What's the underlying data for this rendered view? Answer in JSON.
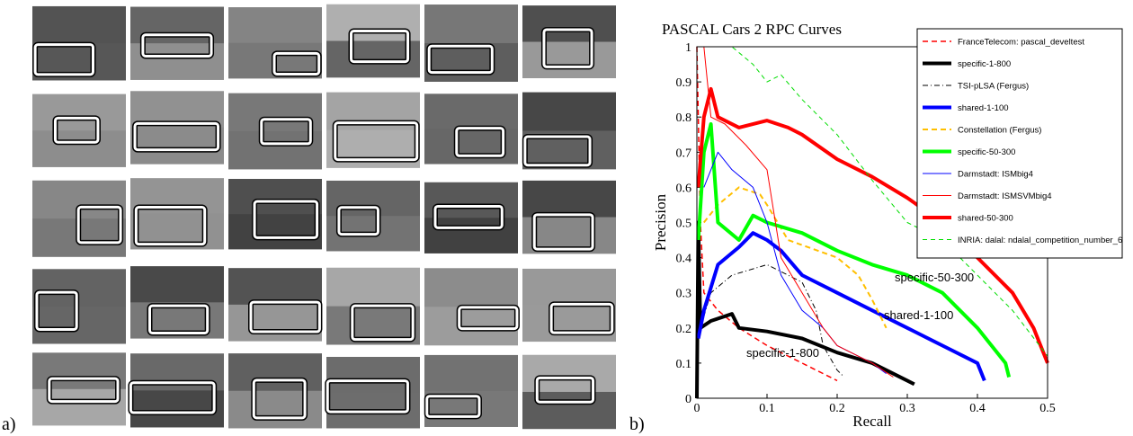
{
  "panel_labels": [
    "a)",
    "b)"
  ],
  "chart_data": {
    "type": "line",
    "title": "PASCAL Cars 2  RPC Curves",
    "x_label": "Recall",
    "y_label": "Precision",
    "xlim": [
      0,
      0.5
    ],
    "ylim": [
      0,
      1
    ],
    "xticks": [
      0,
      0.1,
      0.2,
      0.3,
      0.4,
      0.5
    ],
    "yticks": [
      0,
      0.1,
      0.2,
      0.3,
      0.4,
      0.5,
      0.6,
      0.7,
      0.8,
      0.9,
      1
    ],
    "legend": "upper right",
    "annotations": [
      "shared-50-300",
      "specific-50-300",
      "shared-1-100",
      "specific-1-800"
    ],
    "series": [
      {
        "name": "FranceTelecom: pascal_develtest",
        "color": "#ff0000",
        "dash": "6,4",
        "width": 1.5,
        "x": [
          0,
          0.005,
          0.01,
          0.03,
          0.06,
          0.1,
          0.15,
          0.2
        ],
        "values": [
          1,
          0.5,
          0.3,
          0.25,
          0.2,
          0.15,
          0.1,
          0.05
        ]
      },
      {
        "name": "specific-1-800",
        "color": "#000000",
        "dash": "",
        "width": 4,
        "x": [
          0,
          0.002,
          0.005,
          0.02,
          0.05,
          0.06,
          0.1,
          0.15,
          0.2,
          0.25,
          0.3,
          0.31
        ],
        "values": [
          0,
          0.5,
          0.2,
          0.22,
          0.24,
          0.2,
          0.19,
          0.17,
          0.13,
          0.1,
          0.05,
          0.04
        ]
      },
      {
        "name": "TSI-pLSA (Fergus)",
        "color": "#000000",
        "dash": "6,3,1,3",
        "width": 1,
        "x": [
          0.005,
          0.02,
          0.05,
          0.1,
          0.13,
          0.15,
          0.17,
          0.18,
          0.2,
          0.21
        ],
        "values": [
          0.2,
          0.3,
          0.35,
          0.38,
          0.35,
          0.33,
          0.25,
          0.15,
          0.08,
          0.06
        ]
      },
      {
        "name": "shared-1-100",
        "color": "#0000ff",
        "dash": "",
        "width": 4,
        "x": [
          0.002,
          0.01,
          0.03,
          0.06,
          0.08,
          0.1,
          0.12,
          0.15,
          0.2,
          0.25,
          0.3,
          0.35,
          0.4,
          0.41
        ],
        "values": [
          0.17,
          0.25,
          0.38,
          0.43,
          0.47,
          0.45,
          0.42,
          0.35,
          0.3,
          0.25,
          0.2,
          0.15,
          0.1,
          0.05
        ]
      },
      {
        "name": "Constellation (Fergus)",
        "color": "#ffbf00",
        "dash": "6,4",
        "width": 2,
        "x": [
          0.01,
          0.03,
          0.06,
          0.09,
          0.1,
          0.13,
          0.2,
          0.23,
          0.25,
          0.27
        ],
        "values": [
          0.5,
          0.55,
          0.6,
          0.58,
          0.55,
          0.45,
          0.4,
          0.35,
          0.28,
          0.2
        ]
      },
      {
        "name": "specific-50-300",
        "color": "#00ff00",
        "dash": "",
        "width": 4,
        "x": [
          0.002,
          0.01,
          0.02,
          0.03,
          0.06,
          0.08,
          0.1,
          0.15,
          0.2,
          0.25,
          0.3,
          0.35,
          0.4,
          0.44,
          0.445
        ],
        "values": [
          0.45,
          0.7,
          0.78,
          0.5,
          0.45,
          0.52,
          0.5,
          0.47,
          0.42,
          0.38,
          0.35,
          0.3,
          0.2,
          0.1,
          0.06
        ]
      },
      {
        "name": "Darmstadt: ISMbig4",
        "color": "#0000ff",
        "dash": "",
        "width": 1,
        "x": [
          0.01,
          0.03,
          0.05,
          0.08,
          0.1,
          0.12,
          0.15,
          0.18,
          0.2,
          0.25,
          0.27
        ],
        "values": [
          0.6,
          0.7,
          0.65,
          0.6,
          0.5,
          0.35,
          0.25,
          0.2,
          0.15,
          0.1,
          0.07
        ]
      },
      {
        "name": "Darmstadt: ISMSVMbig4",
        "color": "#ff0000",
        "dash": "",
        "width": 1,
        "x": [
          0.01,
          0.02,
          0.04,
          0.07,
          0.1,
          0.12,
          0.15,
          0.18,
          0.2,
          0.25,
          0.28
        ],
        "values": [
          1,
          0.8,
          0.78,
          0.72,
          0.65,
          0.4,
          0.3,
          0.2,
          0.15,
          0.1,
          0.06
        ]
      },
      {
        "name": "shared-50-300",
        "color": "#ff0000",
        "dash": "",
        "width": 4,
        "x": [
          0.002,
          0.01,
          0.02,
          0.03,
          0.06,
          0.1,
          0.13,
          0.15,
          0.2,
          0.25,
          0.3,
          0.35,
          0.4,
          0.45,
          0.48,
          0.5
        ],
        "values": [
          0.6,
          0.8,
          0.88,
          0.8,
          0.77,
          0.79,
          0.77,
          0.75,
          0.68,
          0.63,
          0.57,
          0.5,
          0.4,
          0.3,
          0.2,
          0.1
        ]
      },
      {
        "name": "INRIA: dalal: ndalal_competition_number_6",
        "color": "#00dd00",
        "dash": "5,4",
        "width": 1,
        "x": [
          0.005,
          0.05,
          0.08,
          0.1,
          0.12,
          0.15,
          0.2,
          0.25,
          0.3,
          0.35,
          0.4,
          0.45,
          0.5
        ],
        "values": [
          1,
          1,
          0.95,
          0.9,
          0.92,
          0.85,
          0.75,
          0.62,
          0.5,
          0.45,
          0.35,
          0.25,
          0.12
        ]
      }
    ]
  }
}
